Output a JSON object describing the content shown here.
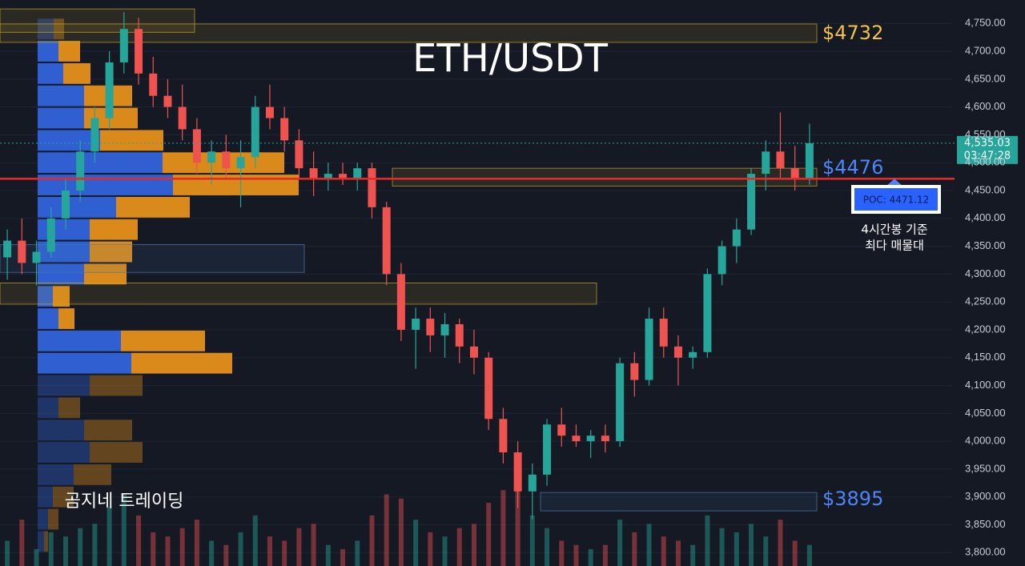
{
  "chart_data": {
    "type": "candlestick",
    "title": "ETH/USDT",
    "watermark": "곰지네 트레이딩",
    "up_color": "#26a69a",
    "down_color": "#ef5350",
    "ylim": [
      3776,
      4792
    ],
    "yticks": [
      {
        "value": 4750,
        "label": "4,750.00"
      },
      {
        "value": 4700,
        "label": "4,700.00"
      },
      {
        "value": 4650,
        "label": "4,650.00"
      },
      {
        "value": 4600,
        "label": "4,600.00"
      },
      {
        "value": 4550,
        "label": "4,550.00"
      },
      {
        "value": 4500,
        "label": "4,500.00"
      },
      {
        "value": 4450,
        "label": "4,450.00"
      },
      {
        "value": 4400,
        "label": "4,400.00"
      },
      {
        "value": 4350,
        "label": "4,350.00"
      },
      {
        "value": 4300,
        "label": "4,300.00"
      },
      {
        "value": 4250,
        "label": "4,250.00"
      },
      {
        "value": 4200,
        "label": "4,200.00"
      },
      {
        "value": 4150,
        "label": "4,150.00"
      },
      {
        "value": 4100,
        "label": "4,100.00"
      },
      {
        "value": 4050,
        "label": "4,050.00"
      },
      {
        "value": 4000,
        "label": "4,000.00"
      },
      {
        "value": 3950,
        "label": "3,950.00"
      },
      {
        "value": 3900,
        "label": "3,900.00"
      },
      {
        "value": 3850,
        "label": "3,850.00"
      },
      {
        "value": 3800,
        "label": "3,800.00"
      }
    ],
    "grid": true,
    "ohlc": [
      [
        4330,
        4380,
        4290,
        4360
      ],
      [
        4360,
        4400,
        4300,
        4320
      ],
      [
        4320,
        4360,
        4280,
        4340
      ],
      [
        4340,
        4420,
        4330,
        4400
      ],
      [
        4400,
        4470,
        4380,
        4450
      ],
      [
        4450,
        4540,
        4430,
        4520
      ],
      [
        4520,
        4600,
        4500,
        4580
      ],
      [
        4580,
        4700,
        4560,
        4680
      ],
      [
        4680,
        4770,
        4660,
        4740
      ],
      [
        4740,
        4760,
        4640,
        4660
      ],
      [
        4660,
        4690,
        4600,
        4620
      ],
      [
        4620,
        4650,
        4580,
        4600
      ],
      [
        4600,
        4640,
        4540,
        4560
      ],
      [
        4560,
        4580,
        4480,
        4500
      ],
      [
        4500,
        4540,
        4460,
        4520
      ],
      [
        4520,
        4550,
        4470,
        4490
      ],
      [
        4490,
        4540,
        4420,
        4510
      ],
      [
        4510,
        4620,
        4490,
        4600
      ],
      [
        4600,
        4640,
        4560,
        4580
      ],
      [
        4580,
        4600,
        4520,
        4540
      ],
      [
        4540,
        4560,
        4470,
        4490
      ],
      [
        4490,
        4520,
        4440,
        4470
      ],
      [
        4470,
        4500,
        4450,
        4480
      ],
      [
        4480,
        4500,
        4460,
        4470
      ],
      [
        4470,
        4500,
        4450,
        4490
      ],
      [
        4490,
        4500,
        4400,
        4420
      ],
      [
        4420,
        4430,
        4280,
        4300
      ],
      [
        4300,
        4320,
        4180,
        4200
      ],
      [
        4200,
        4240,
        4130,
        4220
      ],
      [
        4220,
        4240,
        4160,
        4190
      ],
      [
        4190,
        4230,
        4150,
        4210
      ],
      [
        4210,
        4220,
        4140,
        4170
      ],
      [
        4170,
        4200,
        4120,
        4150
      ],
      [
        4150,
        4160,
        4020,
        4040
      ],
      [
        4040,
        4060,
        3960,
        3980
      ],
      [
        3980,
        4000,
        3880,
        3910
      ],
      [
        3910,
        3960,
        3860,
        3940
      ],
      [
        3940,
        4040,
        3920,
        4030
      ],
      [
        4030,
        4060,
        3990,
        4010
      ],
      [
        4010,
        4030,
        3990,
        4000
      ],
      [
        4000,
        4020,
        3970,
        4010
      ],
      [
        4010,
        4030,
        3980,
        4000
      ],
      [
        4000,
        4150,
        3990,
        4140
      ],
      [
        4140,
        4160,
        4080,
        4110
      ],
      [
        4110,
        4240,
        4100,
        4220
      ],
      [
        4220,
        4240,
        4150,
        4170
      ],
      [
        4170,
        4190,
        4100,
        4150
      ],
      [
        4150,
        4170,
        4130,
        4160
      ],
      [
        4160,
        4310,
        4150,
        4300
      ],
      [
        4300,
        4360,
        4280,
        4350
      ],
      [
        4350,
        4400,
        4320,
        4380
      ],
      [
        4380,
        4490,
        4370,
        4480
      ],
      [
        4480,
        4540,
        4450,
        4520
      ],
      [
        4520,
        4590,
        4470,
        4490
      ],
      [
        4490,
        4530,
        4450,
        4470
      ],
      [
        4470,
        4570,
        4460,
        4535.03
      ]
    ],
    "volume": [
      30,
      55,
      20,
      40,
      35,
      45,
      50,
      70,
      85,
      60,
      40,
      35,
      45,
      55,
      30,
      25,
      40,
      60,
      35,
      30,
      45,
      50,
      25,
      20,
      30,
      60,
      85,
      80,
      55,
      40,
      35,
      45,
      50,
      75,
      90,
      95,
      60,
      45,
      30,
      25,
      20,
      25,
      55,
      40,
      50,
      35,
      30,
      25,
      60,
      45,
      40,
      50,
      35,
      55,
      30,
      25
    ],
    "volume_profile": {
      "bins": [
        3800,
        3840,
        3880,
        3920,
        3960,
        4000,
        4040,
        4080,
        4120,
        4160,
        4200,
        4240,
        4280,
        4320,
        4360,
        4400,
        4440,
        4480,
        4520,
        4560,
        4600,
        4640,
        4680,
        4720,
        4760
      ],
      "buy": [
        8,
        13,
        19,
        45,
        65,
        58,
        26,
        65,
        117,
        104,
        26,
        19,
        58,
        65,
        65,
        98,
        169,
        156,
        78,
        58,
        58,
        32,
        26,
        20
      ],
      "sell": [
        5,
        13,
        26,
        47,
        66,
        60,
        27,
        66,
        126,
        105,
        20,
        21,
        53,
        53,
        60,
        92,
        157,
        152,
        79,
        67,
        60,
        34,
        27,
        13
      ],
      "value_area": [
        4130,
        4730
      ]
    },
    "zones": [
      {
        "low": 4734,
        "high": 4776,
        "color": "#c9a227"
      },
      {
        "low": 4716,
        "high": 4749,
        "color": "#c9a227"
      },
      {
        "low": 4458,
        "high": 4490,
        "color": "#c9a227"
      },
      {
        "low": 4303,
        "high": 4353,
        "color": "#4a78b0"
      },
      {
        "low": 4246,
        "high": 4284,
        "color": "#c9a227"
      },
      {
        "low": 3875,
        "high": 3908,
        "color": "#4a78b0"
      }
    ],
    "levels": [
      {
        "value": 4732,
        "label": "$4732",
        "color": "#f5c242"
      },
      {
        "value": 4476,
        "label": "$4476",
        "color": "#4f86f7"
      },
      {
        "value": 3895,
        "label": "$3895",
        "color": "#4f86f7"
      }
    ],
    "poc": {
      "value": 4471.12,
      "label": "POC: 4471.12",
      "note": [
        "4시간봉 기준",
        "최다 매물대"
      ]
    },
    "last_price": {
      "value": 4535.03,
      "label": "4,535.03"
    },
    "countdown": "03:47:28"
  }
}
